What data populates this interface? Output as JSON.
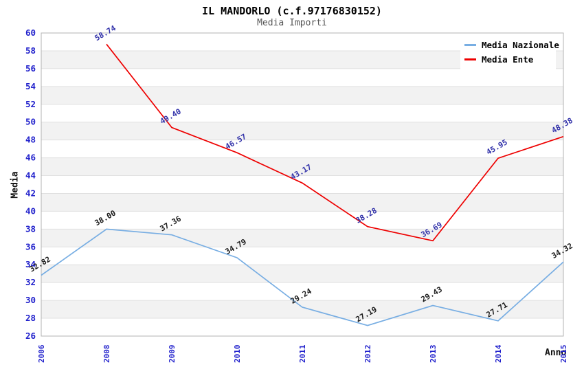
{
  "header": {
    "title": "IL MANDORLO (c.f.97176830152)",
    "subtitle": "Media Importi"
  },
  "colors": {
    "background": "#ffffff",
    "band_fill": "#f2f2f2",
    "gridline": "#e0e0e0",
    "plot_border": "#b3b3b3",
    "axis_tick_label": "#2121cc",
    "title_text": "#000000",
    "subtitle_text": "#555555"
  },
  "chart_data": {
    "type": "line",
    "title": "IL MANDORLO (c.f.97176830152)",
    "subtitle": "Media Importi",
    "xlabel": "Anno",
    "ylabel": "Media",
    "ylim": [
      26,
      60
    ],
    "ytick_step": 2,
    "y_tick_labels": [
      26,
      28,
      30,
      32,
      34,
      36,
      38,
      40,
      42,
      44,
      46,
      48,
      50,
      52,
      54,
      56,
      58,
      60
    ],
    "categories": [
      "2006",
      "2008",
      "2009",
      "2010",
      "2011",
      "2012",
      "2013",
      "2014",
      "2015"
    ],
    "series": [
      {
        "name": "Media Nazionale",
        "color": "#78aee3",
        "label_color": "#1c1c1c",
        "values": [
          32.82,
          38.0,
          37.36,
          34.79,
          29.24,
          27.19,
          29.43,
          27.71,
          34.32
        ]
      },
      {
        "name": "Media Ente",
        "color": "#ee0000",
        "label_color": "#3333aa",
        "values": [
          null,
          58.74,
          49.4,
          46.57,
          43.17,
          38.28,
          36.69,
          45.95,
          48.38
        ]
      }
    ],
    "point_label_format": "0.00",
    "point_label_rotation_deg": -30,
    "legend_position": "top-right",
    "grid": "horizontal gridlines with alternating shaded bands",
    "x_tick_rotation_deg": -90
  }
}
